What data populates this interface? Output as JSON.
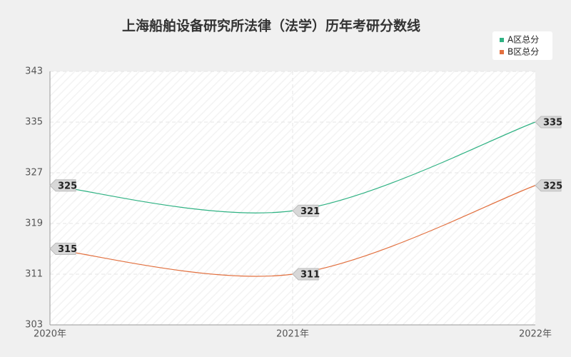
{
  "chart_data": {
    "type": "line",
    "title": "上海船舶设备研究所法律（法学）历年考研分数线",
    "categories": [
      "2020年",
      "2021年",
      "2022年"
    ],
    "series": [
      {
        "name": "A区总分",
        "color": "#2fb283",
        "values": [
          325,
          321,
          335
        ]
      },
      {
        "name": "B区总分",
        "color": "#e2703f",
        "values": [
          315,
          311,
          325
        ]
      }
    ],
    "ylim": [
      303,
      343
    ],
    "yticks": [
      303,
      311,
      319,
      327,
      335,
      343
    ],
    "grid": true,
    "legend": "top-right",
    "smooth": true
  }
}
